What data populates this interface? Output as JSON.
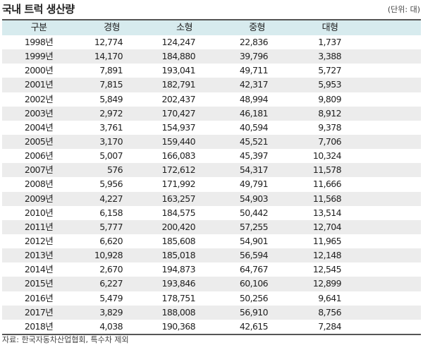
{
  "title": "국내 트럭 생산량",
  "unit": "(단위: 대)",
  "headers": [
    "구분",
    "경형",
    "소형",
    "중형",
    "대형"
  ],
  "rows": [
    [
      "1998년",
      "12,774",
      "124,247",
      "22,836",
      "1,737"
    ],
    [
      "1999년",
      "14,170",
      "184,880",
      "39,796",
      "3,388"
    ],
    [
      "2000년",
      "7,891",
      "193,041",
      "49,711",
      "5,727"
    ],
    [
      "2001년",
      "7,815",
      "182,791",
      "42,317",
      "5,953"
    ],
    [
      "2002년",
      "5,849",
      "202,437",
      "48,994",
      "9,809"
    ],
    [
      "2003년",
      "2,972",
      "170,427",
      "46,181",
      "8,912"
    ],
    [
      "2004년",
      "3,761",
      "154,937",
      "40,594",
      "9,378"
    ],
    [
      "2005년",
      "3,170",
      "159,440",
      "45,521",
      "7,706"
    ],
    [
      "2006년",
      "5,007",
      "166,083",
      "45,397",
      "10,324"
    ],
    [
      "2007년",
      "576",
      "172,612",
      "54,317",
      "11,578"
    ],
    [
      "2008년",
      "5,956",
      "171,992",
      "49,791",
      "11,666"
    ],
    [
      "2009년",
      "4,227",
      "163,257",
      "54,903",
      "11,568"
    ],
    [
      "2010년",
      "6,158",
      "184,575",
      "50,442",
      "13,514"
    ],
    [
      "2011년",
      "5,777",
      "200,420",
      "57,255",
      "12,704"
    ],
    [
      "2012년",
      "6,620",
      "185,608",
      "54,901",
      "11,965"
    ],
    [
      "2013년",
      "10,928",
      "185,018",
      "56,594",
      "12,148"
    ],
    [
      "2014년",
      "2,670",
      "194,873",
      "64,767",
      "12,545"
    ],
    [
      "2015년",
      "6,227",
      "193,846",
      "60,106",
      "12,899"
    ],
    [
      "2016년",
      "5,479",
      "178,751",
      "50,256",
      "9,641"
    ],
    [
      "2017년",
      "3,829",
      "188,008",
      "56,910",
      "8,756"
    ],
    [
      "2018년",
      "4,038",
      "190,368",
      "42,615",
      "7,284"
    ]
  ],
  "source": "자료: 한국자동차산업협회, 특수차 제외",
  "colors": {
    "header_bg": "#d7ebee",
    "alt_row_bg": "#ececec",
    "rule": "#555555"
  }
}
